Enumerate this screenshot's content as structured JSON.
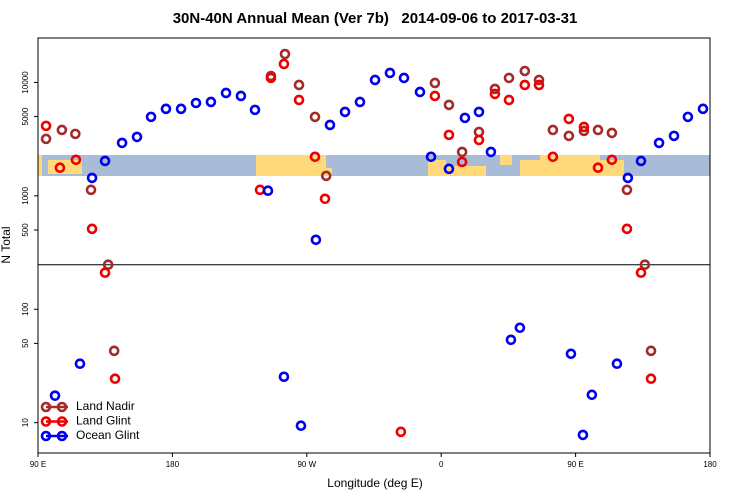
{
  "chart_data": {
    "type": "scatter",
    "title": "30N-40N Annual Mean (Ver 7b)   2014-09-06 to 2017-03-31",
    "x_label": "Longitude (deg E)",
    "y_label": "N Total",
    "xlim": [
      90,
      540
    ],
    "ylim": [
      5.4,
      24660
    ],
    "log_y": true,
    "xticks": [
      {
        "value": 90,
        "label": "90 E"
      },
      180,
      {
        "value": 270,
        "label": "90 W"
      },
      {
        "value": 360,
        "label": "0"
      },
      {
        "value": 450,
        "label": "90 E"
      },
      {
        "value": 540,
        "label": "180"
      }
    ],
    "yticks": [
      10,
      50,
      100,
      500,
      1000,
      5000,
      10000
    ],
    "hline": 247,
    "legend": "bottom-left",
    "series": [
      {
        "name": "Land Nadir",
        "color": "#a52a2a",
        "x": [
          95.4,
          106,
          115,
          125.5,
          137,
          141,
          246,
          255.4,
          264.8,
          275.5,
          283,
          355.8,
          365.2,
          374,
          385.3,
          396,
          405.4,
          416,
          425.5,
          434.8,
          445.5,
          455.6,
          465,
          474.3,
          484.4,
          496.4,
          500.5
        ],
        "values": [
          3180,
          3810,
          3520,
          1130,
          247,
          43,
          11400,
          17800,
          9500,
          4970,
          1500,
          9900,
          6340,
          2440,
          3660,
          8770,
          10960,
          12620,
          10520,
          3810,
          3380,
          3740,
          3810,
          3590,
          1130,
          247,
          43
        ]
      },
      {
        "name": "Land Glint",
        "color": "#ee0000",
        "x": [
          95.4,
          104.7,
          115.4,
          126.2,
          134.9,
          141.6,
          238.7,
          246,
          254.7,
          264.8,
          275.5,
          282.2,
          333,
          355.8,
          365.2,
          374,
          385.3,
          396,
          405.4,
          416,
          425.5,
          434.8,
          445.5,
          455.6,
          465,
          474.3,
          484.4,
          493.8,
          500.5
        ],
        "values": [
          4140,
          1770,
          2080,
          512,
          210,
          24.4,
          1130,
          10960,
          14560,
          7010,
          2210,
          942,
          8.3,
          7600,
          3450,
          1990,
          3110,
          7920,
          7010,
          9500,
          9500,
          2210,
          4770,
          4050,
          1770,
          2080,
          512,
          210,
          24.4
        ]
      },
      {
        "name": "Ocean Glint",
        "color": "#0000ee",
        "x": [
          101.4,
          118.1,
          126.2,
          134.9,
          146.3,
          156.3,
          165.7,
          175.7,
          185.8,
          195.8,
          205.8,
          215.9,
          225.9,
          235.3,
          244,
          254.7,
          266.1,
          276.1,
          285.5,
          295.6,
          305.6,
          315.7,
          325.7,
          335.1,
          345.8,
          353.2,
          365.2,
          375.9,
          385.3,
          393.3,
          406.7,
          412.7,
          446.9,
          454.9,
          460.9,
          477.7,
          485,
          493.8,
          505.9,
          515.9,
          525.2,
          535.3
        ],
        "values": [
          17.3,
          33.1,
          1440,
          2030,
          2930,
          3310,
          4970,
          5850,
          5850,
          6590,
          6730,
          8080,
          7600,
          5730,
          1110,
          25.4,
          9.4,
          410,
          4220,
          5500,
          6730,
          10520,
          12130,
          10960,
          8240,
          2210,
          1730,
          4870,
          5500,
          2440,
          53.8,
          68.7,
          40.5,
          7.8,
          17.6,
          33.1,
          1440,
          2030,
          2930,
          3380,
          4970,
          5850
        ]
      }
    ]
  }
}
